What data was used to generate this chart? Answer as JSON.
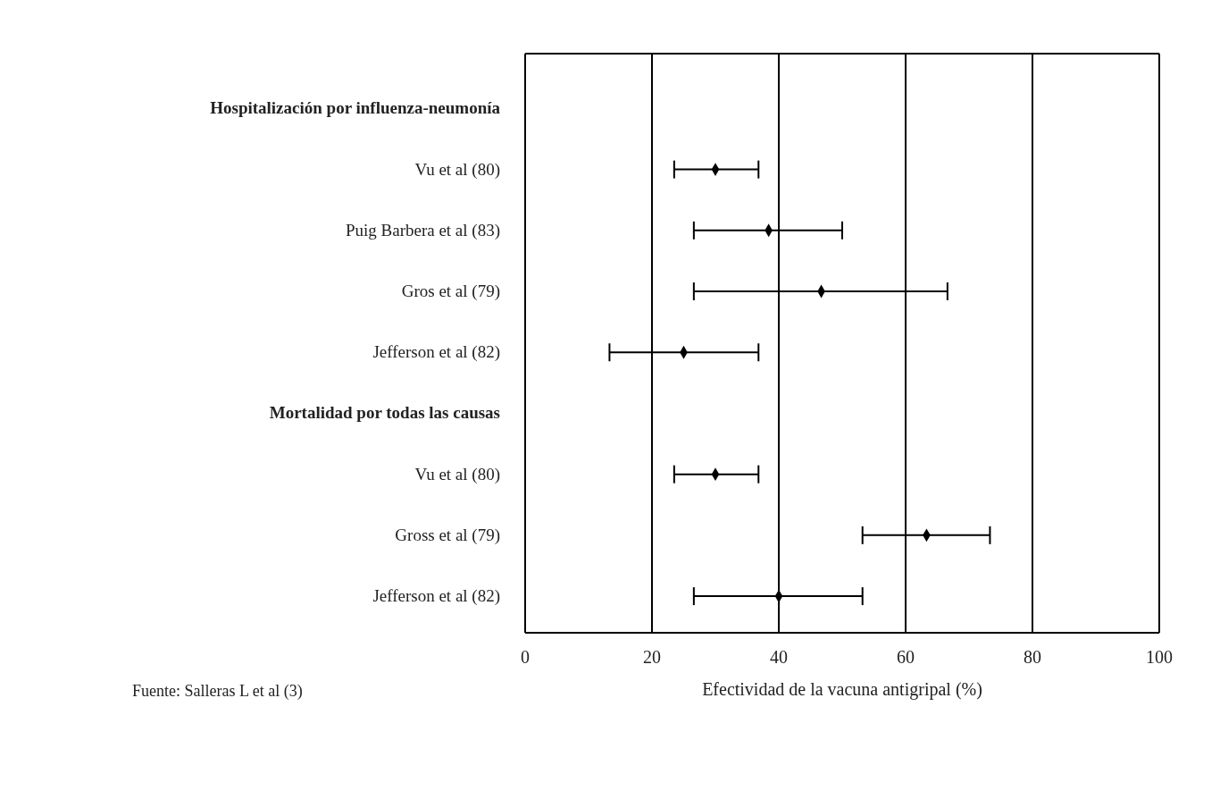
{
  "chart_data": {
    "type": "scatter",
    "orientation": "horizontal",
    "xlabel": "Efectividad de la vacuna antigripal (%)",
    "categories": [
      "Hospitalización por influenza-neumonía",
      "Vu et al (80)",
      "Puig Barbera et al (83)",
      "Gros et al (79)",
      "Jefferson et al (82)",
      "Mortalidad por todas las causas",
      "Vu et al (80)",
      "Gross et al (79)",
      "Jefferson et al (82)"
    ],
    "series": [
      {
        "color": "#000000",
        "values": [
          null,
          30,
          38.4,
          46.7,
          25,
          null,
          30,
          63.3,
          40
        ],
        "errors": [
          null,
          [
            23.5,
            36.8
          ],
          [
            26.6,
            50
          ],
          [
            26.6,
            66.6
          ],
          [
            13.3,
            36.8
          ],
          null,
          [
            23.5,
            36.8
          ],
          [
            53.2,
            73.3
          ],
          [
            26.6,
            53.2
          ]
        ]
      }
    ],
    "marker": "diamond",
    "xlim": [
      0,
      100
    ],
    "xticks": [
      0,
      20,
      40,
      60,
      80,
      100
    ],
    "grid": "x",
    "annotations": [
      "Fuente: Salleras L et al (3)"
    ]
  }
}
